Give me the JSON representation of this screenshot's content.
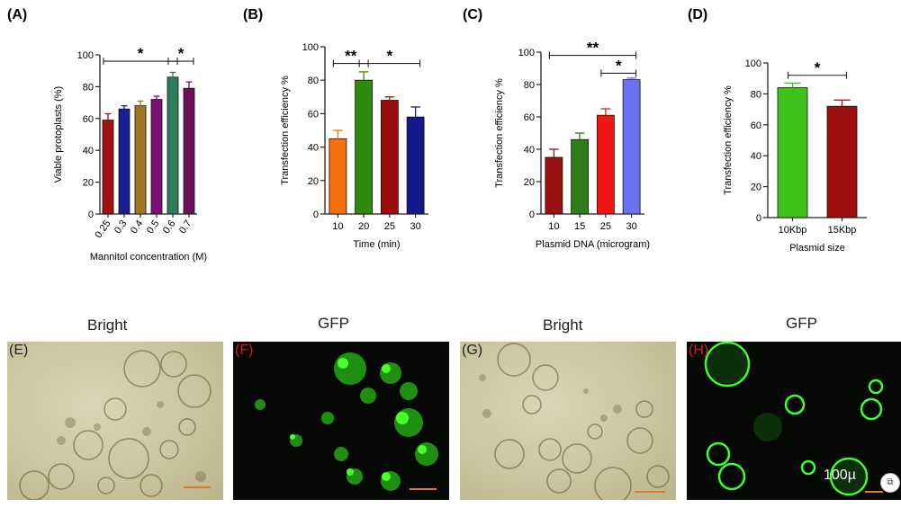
{
  "chart_data": [
    {
      "type": "bar",
      "panel": "(A)",
      "categories": [
        "0.25",
        "0.3",
        "0.4",
        "0.5",
        "0.6",
        "0.7"
      ],
      "values": [
        59,
        66,
        68,
        72,
        86,
        79
      ],
      "errors": [
        4,
        2,
        3,
        2,
        3,
        4
      ],
      "colors": [
        "#a01010",
        "#1a1f8f",
        "#a07620",
        "#7a1070",
        "#2e7d5a",
        "#6a0f5a"
      ],
      "xlabel": "Mannitol concentration (M)",
      "ylabel": "Viable protoplasts (%)",
      "ylim": [
        0,
        100
      ],
      "yticks": [
        0,
        20,
        40,
        60,
        80,
        100
      ],
      "significance": [
        {
          "from": 0,
          "to": 4,
          "label": "*",
          "y": 96
        },
        {
          "from": 4,
          "to": 5,
          "label": "*",
          "y": 96
        }
      ]
    },
    {
      "type": "bar",
      "panel": "(B)",
      "categories": [
        "10",
        "20",
        "25",
        "30"
      ],
      "values": [
        45,
        80,
        68,
        58
      ],
      "errors": [
        5,
        5,
        2,
        6
      ],
      "colors": [
        "#f5700a",
        "#2e8b0d",
        "#9c0c0c",
        "#141a8c"
      ],
      "xlabel": "Time (min)",
      "ylabel": "Transfection efficiency %",
      "ylim": [
        0,
        100
      ],
      "yticks": [
        0,
        20,
        40,
        60,
        80,
        100
      ],
      "significance": [
        {
          "from": 0,
          "to": 1,
          "label": "**",
          "y": 90
        },
        {
          "from": 1,
          "to": 3,
          "label": "*",
          "y": 90
        }
      ]
    },
    {
      "type": "bar",
      "panel": "(C)",
      "categories": [
        "10",
        "15",
        "25",
        "30"
      ],
      "values": [
        35,
        46,
        61,
        83
      ],
      "errors": [
        5,
        4,
        4,
        1
      ],
      "colors": [
        "#9c1212",
        "#2e7d1a",
        "#f21515",
        "#6b72f2"
      ],
      "xlabel": "Plasmid DNA (microgram)",
      "ylabel": "Transfection efficiency %",
      "ylim": [
        0,
        100
      ],
      "yticks": [
        0,
        20,
        40,
        60,
        80,
        100
      ],
      "significance": [
        {
          "from": 0,
          "to": 3,
          "label": "**",
          "y": 98
        },
        {
          "from": 2,
          "to": 3,
          "label": "*",
          "y": 87
        }
      ]
    },
    {
      "type": "bar",
      "panel": "(D)",
      "categories": [
        "10Kbp",
        "15Kbp"
      ],
      "values": [
        84,
        72
      ],
      "errors": [
        3,
        4
      ],
      "colors": [
        "#3cc21a",
        "#9a0e0e"
      ],
      "xlabel": "Plasmid size",
      "ylabel": "Transfection efficiency %",
      "ylim": [
        0,
        100
      ],
      "yticks": [
        0,
        20,
        40,
        60,
        80,
        100
      ],
      "significance": [
        {
          "from": 0,
          "to": 1,
          "label": "*",
          "y": 92
        }
      ]
    }
  ],
  "micrographs": [
    {
      "letter": "(E)",
      "title": "Bright"
    },
    {
      "letter": "(F)",
      "title": "GFP"
    },
    {
      "letter": "(G)",
      "title": "Bright"
    },
    {
      "letter": "(H)",
      "title": "GFP",
      "scale_label": "100µ"
    }
  ],
  "colors": {
    "scalebar": "#e07b2a",
    "gfp_green": "#3dff2a",
    "letter_red": "#d41a1a"
  }
}
